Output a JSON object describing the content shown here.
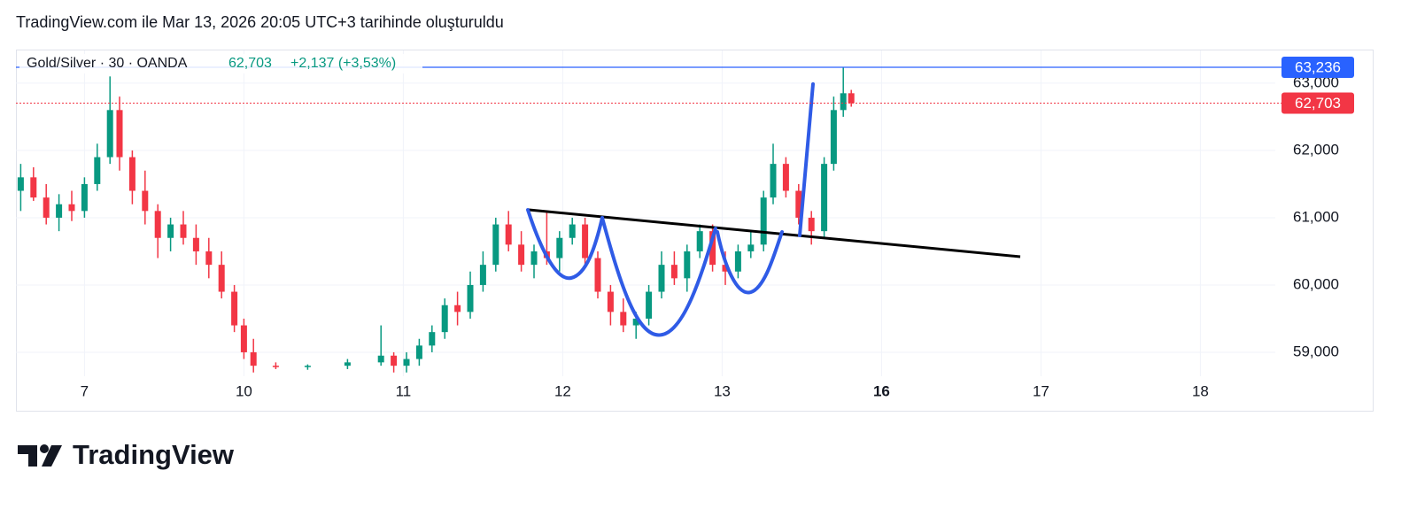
{
  "header": {
    "caption": "TradingView.com ile Mar 13, 2026 20:05 UTC+3 tarihinde oluşturuldu"
  },
  "chart_data": {
    "type": "candlestick",
    "title": "Gold/Silver · 30 · OANDA",
    "change_label": "+2,137 (+3,53%)",
    "up_color": "#089981",
    "down_color": "#f23645",
    "grid": true,
    "xlim": [
      6.57,
      14.47
    ],
    "xticks": [
      7,
      {
        "value": 8,
        "label": "10"
      },
      {
        "value": 9,
        "label": "11"
      },
      {
        "value": 10,
        "label": "12"
      },
      {
        "value": 11,
        "label": "13"
      },
      {
        "value": 12,
        "label": "16",
        "bold": true
      },
      {
        "value": 13,
        "label": "17"
      },
      {
        "value": 14,
        "label": "18"
      }
    ],
    "ylim": [
      58710,
      63420
    ],
    "yticks": [
      {
        "value": 59000,
        "label": "59,000"
      },
      {
        "value": 60000,
        "label": "60,000"
      },
      {
        "value": 61000,
        "label": "61,000"
      },
      {
        "value": 62000,
        "label": "62,000"
      },
      {
        "value": 63000,
        "label": "63,000"
      }
    ],
    "price_lines": [
      {
        "value": 63236,
        "label": "63,236",
        "color": "#2962ff",
        "style": "solid"
      },
      {
        "value": 62703,
        "label": "62,703",
        "color": "#f23645",
        "style": "dotted"
      }
    ],
    "x": [
      6.6,
      6.68,
      6.76,
      6.84,
      6.92,
      7.0,
      7.08,
      7.16,
      7.22,
      7.3,
      7.38,
      7.46,
      7.54,
      7.62,
      7.7,
      7.78,
      7.86,
      7.94,
      8.0,
      8.06,
      8.2,
      8.4,
      8.65,
      8.86,
      8.94,
      9.02,
      9.1,
      9.18,
      9.26,
      9.34,
      9.42,
      9.5,
      9.58,
      9.66,
      9.74,
      9.82,
      9.9,
      9.98,
      10.06,
      10.14,
      10.22,
      10.3,
      10.38,
      10.46,
      10.54,
      10.62,
      10.7,
      10.78,
      10.86,
      10.94,
      11.02,
      11.1,
      11.18,
      11.26,
      11.32,
      11.4,
      11.48,
      11.56,
      11.64,
      11.7,
      11.76,
      11.81
    ],
    "open": [
      61400,
      61600,
      61300,
      61000,
      61200,
      61100,
      61500,
      61900,
      62600,
      61900,
      61400,
      61100,
      60700,
      60900,
      60700,
      60500,
      60300,
      59900,
      59400,
      59000,
      58800,
      58780,
      58800,
      58850,
      58950,
      58800,
      58900,
      59100,
      59300,
      59700,
      59600,
      60000,
      60300,
      60900,
      60600,
      60300,
      60500,
      60400,
      60700,
      60900,
      60400,
      59900,
      59600,
      59400,
      59500,
      59900,
      60300,
      60100,
      60500,
      60800,
      60300,
      60200,
      60500,
      60600,
      61300,
      61800,
      61400,
      61000,
      60800,
      61800,
      62600,
      62850
    ],
    "high": [
      61800,
      61750,
      61500,
      61350,
      61400,
      61600,
      62100,
      63100,
      62800,
      62000,
      61700,
      61200,
      61000,
      61100,
      60900,
      60700,
      60500,
      60000,
      59500,
      59200,
      58850,
      58820,
      58900,
      59400,
      59000,
      59000,
      59200,
      59400,
      59800,
      59900,
      60200,
      60500,
      61000,
      61100,
      60800,
      60600,
      61100,
      60800,
      61000,
      61000,
      60500,
      60000,
      59800,
      59600,
      60000,
      60500,
      60500,
      60600,
      60900,
      60900,
      60500,
      60600,
      60800,
      61400,
      62100,
      61900,
      61500,
      61100,
      61900,
      62800,
      63236,
      62900
    ],
    "low": [
      61100,
      61250,
      60900,
      60800,
      60950,
      61000,
      61400,
      61800,
      61700,
      61200,
      60900,
      60400,
      60500,
      60600,
      60300,
      60100,
      59800,
      59300,
      58900,
      58700,
      58750,
      58740,
      58750,
      58800,
      58700,
      58700,
      58800,
      59000,
      59200,
      59400,
      59500,
      59900,
      60200,
      60500,
      60200,
      60100,
      60300,
      60200,
      60600,
      60300,
      59800,
      59400,
      59300,
      59200,
      59400,
      59800,
      60000,
      59900,
      60400,
      60200,
      60000,
      60100,
      60400,
      60500,
      61200,
      61300,
      60900,
      60600,
      60700,
      61700,
      62500,
      62650
    ],
    "close": [
      61600,
      61300,
      61000,
      61200,
      61100,
      61500,
      61900,
      62600,
      61900,
      61400,
      61100,
      60700,
      60900,
      60700,
      60500,
      60300,
      59900,
      59400,
      59000,
      58800,
      58780,
      58800,
      58850,
      58950,
      58800,
      58900,
      59100,
      59300,
      59700,
      59600,
      60000,
      60300,
      60900,
      60600,
      60300,
      60500,
      60400,
      60700,
      60900,
      60400,
      59900,
      59600,
      59400,
      59500,
      59900,
      60300,
      60100,
      60500,
      60800,
      60300,
      60200,
      60500,
      60600,
      61300,
      61800,
      61400,
      61000,
      60800,
      61800,
      62600,
      62850,
      62703
    ]
  },
  "footer": {
    "brand": "TradingView"
  }
}
